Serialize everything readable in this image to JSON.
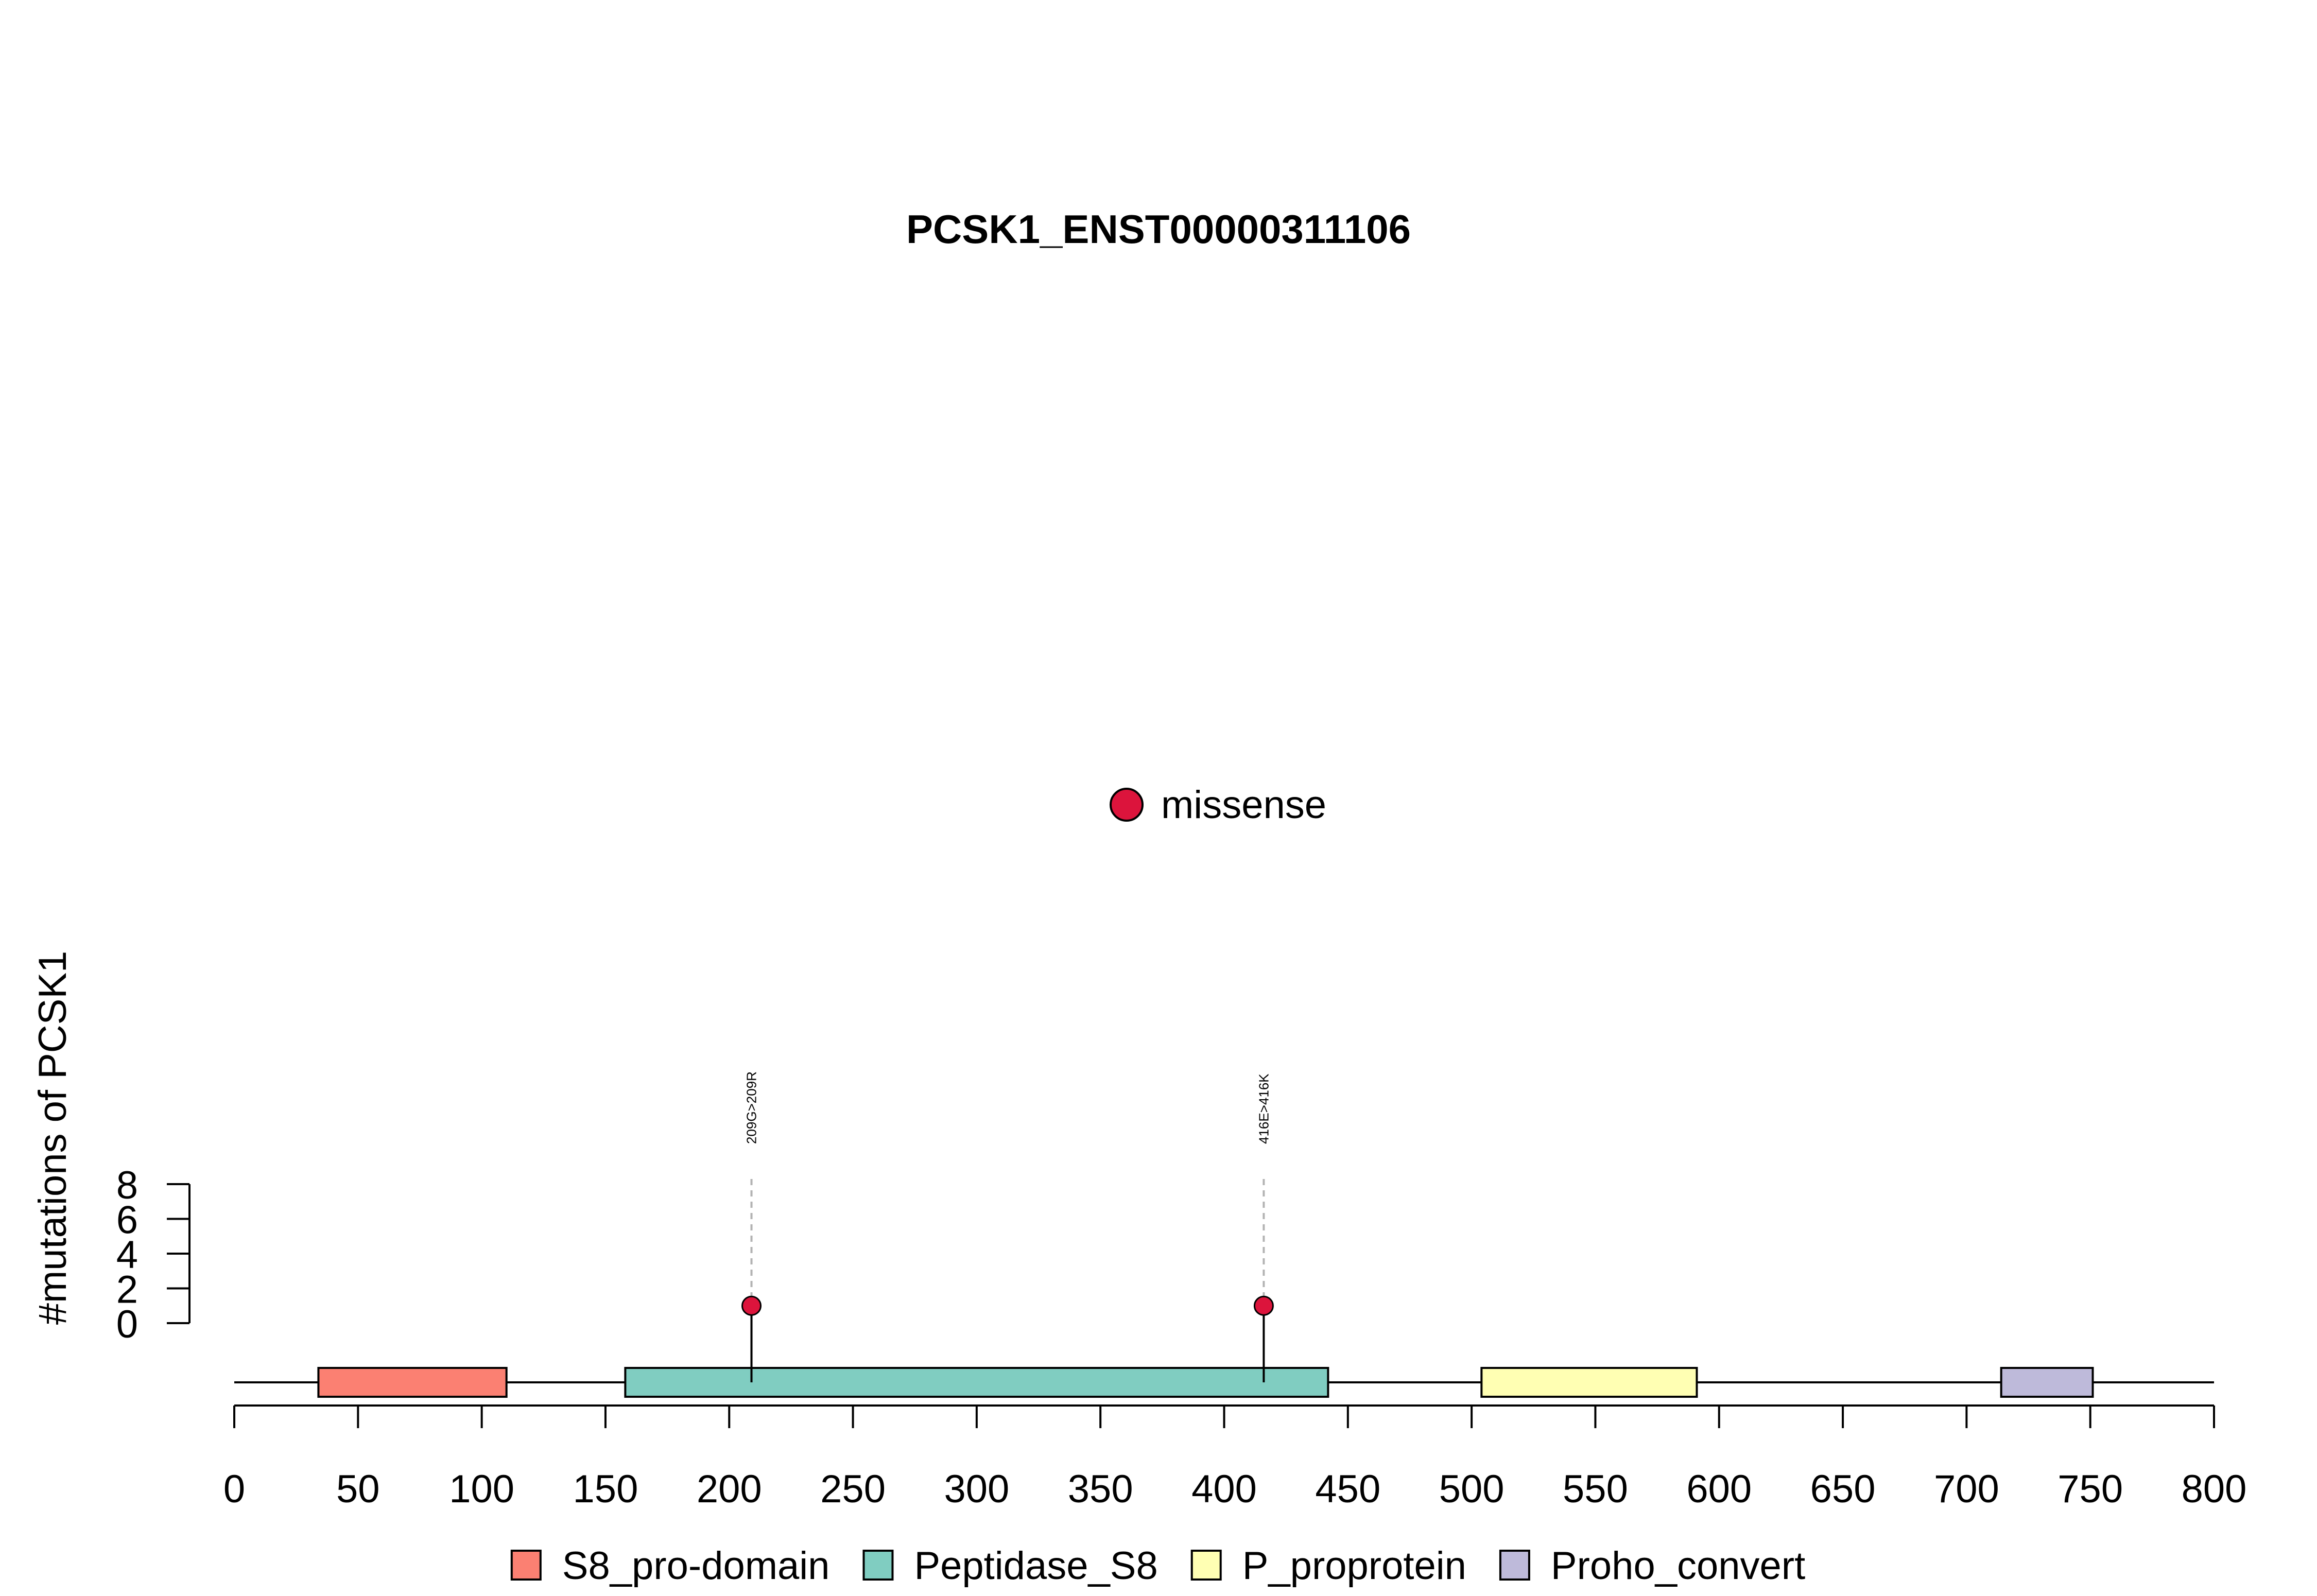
{
  "chart_data": {
    "type": "lollipop",
    "title": "PCSK1_ENST00000311106",
    "ylabel": "#mutations of PCSK1",
    "xlabel": "",
    "xlim": [
      0,
      800
    ],
    "ylim": [
      0,
      8
    ],
    "x_ticks": [
      0,
      50,
      100,
      150,
      200,
      250,
      300,
      350,
      400,
      450,
      500,
      550,
      600,
      650,
      700,
      750,
      800
    ],
    "y_ticks": [
      0,
      2,
      4,
      6,
      8
    ],
    "mutations": [
      {
        "position": 209,
        "count": 1,
        "label": "209G>209R",
        "type": "missense"
      },
      {
        "position": 416,
        "count": 1,
        "label": "416E>416K",
        "type": "missense"
      }
    ],
    "domains": [
      {
        "name": "S8_pro-domain",
        "start": 34,
        "end": 110,
        "color": "#FB8072"
      },
      {
        "name": "Peptidase_S8",
        "start": 158,
        "end": 442,
        "color": "#80CDC1"
      },
      {
        "name": "P_proprotein",
        "start": 504,
        "end": 591,
        "color": "#FFFFB3"
      },
      {
        "name": "Proho_convert",
        "start": 714,
        "end": 751,
        "color": "#BEBADA"
      }
    ],
    "mutation_legend": [
      {
        "label": "missense",
        "color": "#DC143C"
      }
    ],
    "domain_legend_placement": "bottom",
    "mutation_legend_placement": "center",
    "grid": false
  }
}
